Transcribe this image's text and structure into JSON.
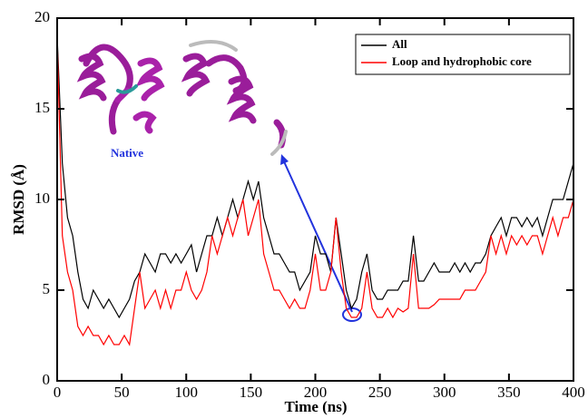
{
  "chart_data": {
    "type": "line",
    "xlabel": "Time (ns)",
    "ylabel": "RMSD (Å)",
    "annotation": "Native",
    "legend": "upper right",
    "x": [
      0,
      4,
      8,
      12,
      16,
      20,
      24,
      28,
      32,
      36,
      40,
      44,
      48,
      52,
      56,
      60,
      64,
      68,
      72,
      76,
      80,
      84,
      88,
      92,
      96,
      100,
      104,
      108,
      112,
      116,
      120,
      124,
      128,
      132,
      136,
      140,
      144,
      148,
      152,
      156,
      160,
      164,
      168,
      172,
      176,
      180,
      184,
      188,
      192,
      196,
      200,
      204,
      208,
      212,
      216,
      220,
      224,
      228,
      232,
      236,
      240,
      244,
      248,
      252,
      256,
      260,
      264,
      268,
      272,
      276,
      280,
      284,
      288,
      292,
      296,
      300,
      304,
      308,
      312,
      316,
      320,
      324,
      328,
      332,
      336,
      340,
      344,
      348,
      352,
      356,
      360,
      364,
      368,
      372,
      376,
      380,
      384,
      388,
      392,
      396,
      400
    ],
    "series": [
      {
        "name": "All",
        "color": "#000000",
        "values": [
          19,
          12,
          9,
          8,
          6,
          4.5,
          4,
          5,
          4.5,
          4,
          4.5,
          4,
          3.5,
          4,
          4.5,
          5.5,
          6,
          7,
          6.5,
          6,
          7,
          7,
          6.5,
          7,
          6.5,
          7,
          7.5,
          6,
          7,
          8,
          8,
          9,
          8,
          9,
          10,
          9,
          10,
          11,
          10,
          11,
          9,
          8,
          7,
          7,
          6.5,
          6,
          6,
          5,
          5.5,
          6,
          8,
          7,
          7,
          6,
          9,
          7,
          5,
          4,
          4.5,
          6,
          7,
          5,
          4.5,
          4.5,
          5,
          5,
          5,
          5.5,
          5.5,
          8,
          5.5,
          5.5,
          6,
          6.5,
          6,
          6,
          6,
          6.5,
          6,
          6.5,
          6,
          6.5,
          6.5,
          7,
          8,
          8.5,
          9,
          8,
          9,
          9,
          8.5,
          9,
          8.5,
          9,
          8,
          9,
          10,
          10,
          10,
          11,
          12
        ]
      },
      {
        "name": "Loop and hydrophobic core",
        "color": "#ff0000",
        "values": [
          19,
          8,
          6,
          5,
          3,
          2.5,
          3,
          2.5,
          2.5,
          2,
          2.5,
          2,
          2,
          2.5,
          2,
          4,
          6,
          4,
          4.5,
          5,
          4,
          5,
          4,
          5,
          5,
          6,
          5,
          4.5,
          5,
          6,
          8,
          7,
          8,
          9,
          8,
          9,
          10,
          8,
          9,
          10,
          7,
          6,
          5,
          5,
          4.5,
          4,
          4.5,
          4,
          4,
          5,
          7,
          5,
          5,
          6,
          9,
          6,
          4,
          3.5,
          3.5,
          4,
          6,
          4,
          3.5,
          3.5,
          4,
          3.5,
          4,
          3.8,
          4,
          7,
          4,
          4,
          4,
          4.2,
          4.5,
          4.5,
          4.5,
          4.5,
          4.5,
          5,
          5,
          5,
          5.5,
          6,
          8,
          7,
          8,
          7,
          8,
          7.5,
          8,
          7.5,
          8,
          8,
          7,
          8,
          9,
          8,
          9,
          9,
          10
        ]
      }
    ],
    "xlim": [
      0,
      400
    ],
    "ylim": [
      0,
      20
    ],
    "xticks": [
      0,
      50,
      100,
      150,
      200,
      250,
      300,
      350,
      400
    ],
    "yticks": [
      0,
      5,
      10,
      15,
      20
    ]
  }
}
